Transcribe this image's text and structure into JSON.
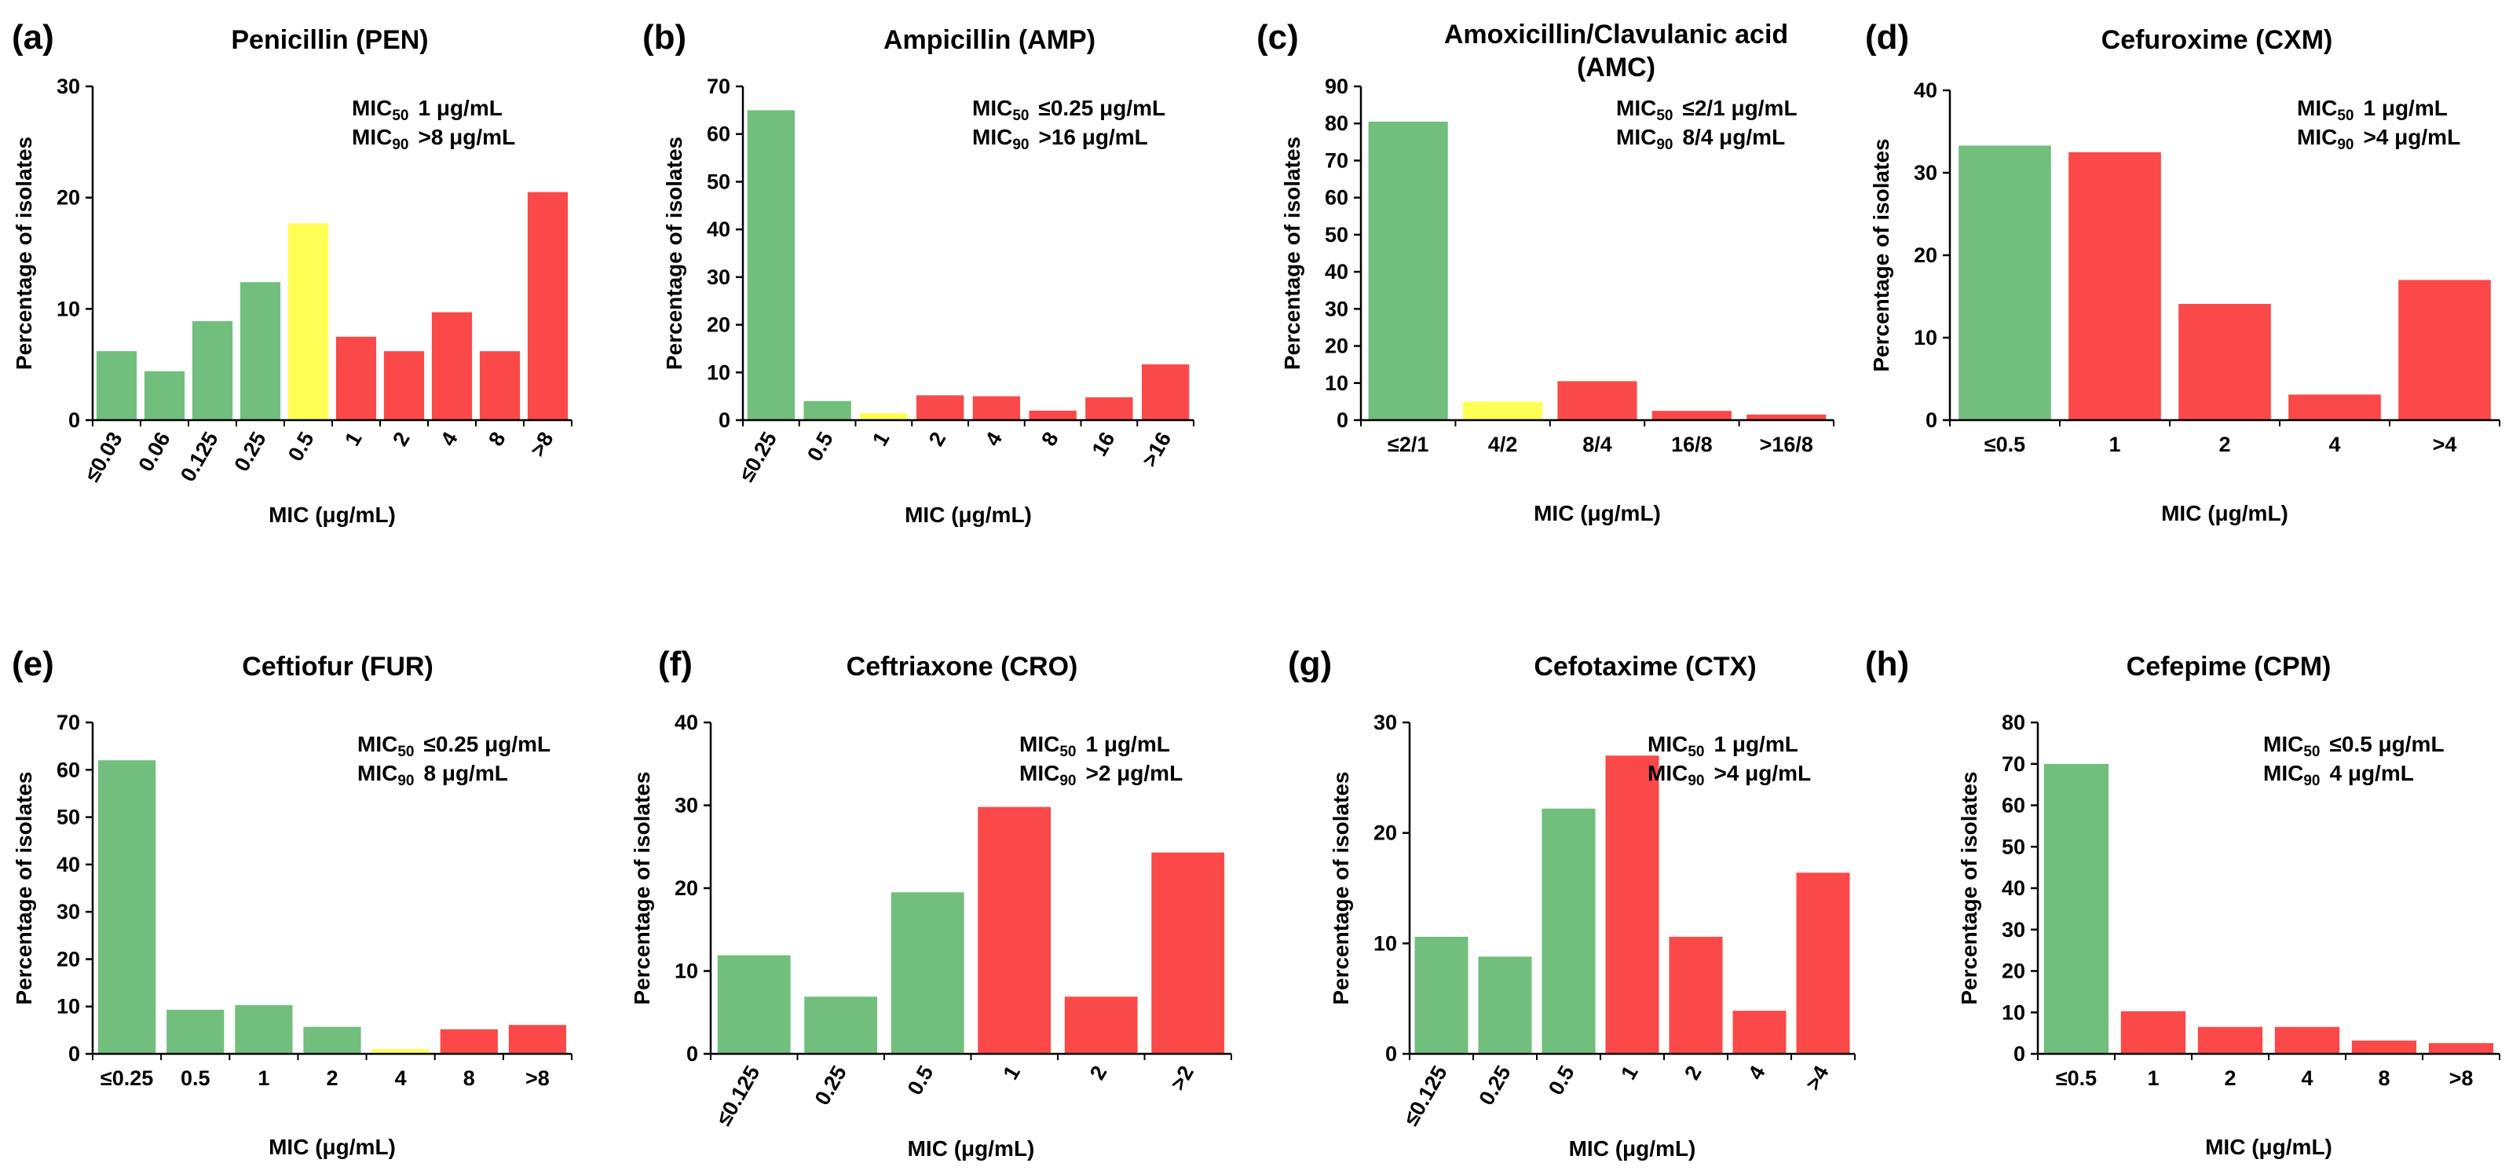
{
  "colors": {
    "susceptible": "#71be7d",
    "intermediate": "#ffff55",
    "resistant": "#fb4848"
  },
  "chart_data": [
    {
      "type": "bar",
      "letter": "(a)",
      "title": "Penicillin (PEN)",
      "categories": [
        "≤0.03",
        "0.06",
        "0.125",
        "0.25",
        "0.5",
        "1",
        "2",
        "4",
        "8",
        ">8"
      ],
      "values": [
        6.2,
        4.4,
        8.9,
        12.4,
        17.7,
        7.5,
        6.2,
        9.7,
        6.2,
        20.5
      ],
      "classes": [
        "S",
        "S",
        "S",
        "S",
        "I",
        "R",
        "R",
        "R",
        "R",
        "R"
      ],
      "ylim": [
        0,
        30
      ],
      "yticks": [
        "0",
        "10",
        "20",
        "30"
      ],
      "xlabel": "MIC (μg/mL)",
      "ylabel": "Percentage of isolates",
      "mic50": {
        "label": "MIC",
        "sub": "50",
        "value": "1 μg/mL"
      },
      "mic90": {
        "label": "MIC",
        "sub": "90",
        "value": ">8 μg/mL"
      }
    },
    {
      "type": "bar",
      "letter": "(b)",
      "title": "Ampicillin  (AMP)",
      "categories": [
        "≤0.25",
        "0.5",
        "1",
        "2",
        "4",
        "8",
        "16",
        ">16"
      ],
      "values": [
        65,
        4,
        1.5,
        5.2,
        5,
        2,
        4.8,
        11.7
      ],
      "classes": [
        "S",
        "S",
        "I",
        "R",
        "R",
        "R",
        "R",
        "R"
      ],
      "ylim": [
        0,
        70
      ],
      "yticks": [
        "0",
        "10",
        "20",
        "30",
        "40",
        "50",
        "60",
        "70"
      ],
      "xlabel": "MIC (μg/mL)",
      "ylabel": "Percentage of isolates",
      "mic50": {
        "label": "MIC",
        "sub": "50",
        "value": "≤0.25 μg/mL"
      },
      "mic90": {
        "label": "MIC",
        "sub": "90",
        "value": ">16 μg/mL"
      }
    },
    {
      "type": "bar",
      "letter": "(c)",
      "title": "Amoxicillin/Clavulanic  acid",
      "title2": "(AMC)",
      "categories": [
        "≤2/1",
        "4/2",
        "8/4",
        "16/8",
        ">16/8"
      ],
      "values": [
        80.5,
        5,
        10.5,
        2.5,
        1.5
      ],
      "classes": [
        "S",
        "I",
        "R",
        "R",
        "R"
      ],
      "ylim": [
        0,
        90
      ],
      "yticks": [
        "0",
        "10",
        "20",
        "30",
        "40",
        "50",
        "60",
        "70",
        "80",
        "90"
      ],
      "xlabel": "MIC (μg/mL)",
      "ylabel": "Percentage of isolates",
      "mic50": {
        "label": "MIC",
        "sub": "50",
        "value": "≤2/1 μg/mL"
      },
      "mic90": {
        "label": "MIC",
        "sub": "90",
        "value": "8/4 μg/mL"
      }
    },
    {
      "type": "bar",
      "letter": "(d)",
      "title": "Cefuroxime (CXM)",
      "categories": [
        "≤0.5",
        "1",
        "2",
        "4",
        ">4"
      ],
      "values": [
        33.3,
        32.5,
        14.1,
        3.1,
        17
      ],
      "classes": [
        "S",
        "R",
        "R",
        "R",
        "R"
      ],
      "ylim": [
        0,
        40
      ],
      "yticks": [
        "0",
        "10",
        "20",
        "30",
        "40"
      ],
      "xlabel": "MIC (μg/mL)",
      "ylabel": "Percentage of isolates",
      "mic50": {
        "label": "MIC",
        "sub": "50",
        "value": "1 μg/mL"
      },
      "mic90": {
        "label": "MIC",
        "sub": "90",
        "value": ">4 μg/mL"
      }
    },
    {
      "type": "bar",
      "letter": "(e)",
      "title": "Ceftiofur (FUR)",
      "categories": [
        "≤0.25",
        "0.5",
        "1",
        "2",
        "4",
        "8",
        ">8"
      ],
      "values": [
        62,
        9.3,
        10.3,
        5.7,
        1,
        5.2,
        6.1
      ],
      "classes": [
        "S",
        "S",
        "S",
        "S",
        "I",
        "R",
        "R"
      ],
      "ylim": [
        0,
        70
      ],
      "yticks": [
        "0",
        "10",
        "20",
        "30",
        "40",
        "50",
        "60",
        "70"
      ],
      "xlabel": "MIC (μg/mL)",
      "ylabel": "Percentage of isolates",
      "mic50": {
        "label": "MIC",
        "sub": "50",
        "value": "≤0.25 μg/mL"
      },
      "mic90": {
        "label": "MIC",
        "sub": "90",
        "value": "8 μg/mL"
      }
    },
    {
      "type": "bar",
      "letter": "(f)",
      "title": "Ceftriaxone (CRO)",
      "categories": [
        "≤0.125",
        "0.25",
        "0.5",
        "1",
        "2",
        ">2"
      ],
      "values": [
        11.9,
        6.9,
        19.5,
        29.8,
        6.9,
        24.3
      ],
      "classes": [
        "S",
        "S",
        "S",
        "R",
        "R",
        "R"
      ],
      "ylim": [
        0,
        40
      ],
      "yticks": [
        "0",
        "10",
        "20",
        "30",
        "40"
      ],
      "xlabel": "MIC (μg/mL)",
      "ylabel": "Percentage of isolates",
      "mic50": {
        "label": "MIC",
        "sub": "50",
        "value": "1 μg/mL"
      },
      "mic90": {
        "label": "MIC",
        "sub": "90",
        "value": ">2 μg/mL"
      }
    },
    {
      "type": "bar",
      "letter": "(g)",
      "title": "Cefotaxime (CTX)",
      "categories": [
        "≤0.125",
        "0.25",
        "0.5",
        "1",
        "2",
        "4",
        ">4"
      ],
      "values": [
        10.6,
        8.8,
        22.2,
        27,
        10.6,
        3.9,
        16.4
      ],
      "classes": [
        "S",
        "S",
        "S",
        "R",
        "R",
        "R",
        "R"
      ],
      "ylim": [
        0,
        30
      ],
      "yticks": [
        "0",
        "10",
        "20",
        "30"
      ],
      "xlabel": "MIC (μg/mL)",
      "ylabel": "Percentage of isolates",
      "mic50": {
        "label": "MIC",
        "sub": "50",
        "value": "1 μg/mL"
      },
      "mic90": {
        "label": "MIC",
        "sub": "90",
        "value": ">4 μg/mL"
      }
    },
    {
      "type": "bar",
      "letter": "(h)",
      "title": "Cefepime (CPM)",
      "categories": [
        "≤0.5",
        "1",
        "2",
        "4",
        "8",
        ">8"
      ],
      "values": [
        70,
        10.3,
        6.5,
        6.5,
        3.2,
        2.6
      ],
      "classes": [
        "S",
        "R",
        "R",
        "R",
        "R",
        "R"
      ],
      "ylim": [
        0,
        80
      ],
      "yticks": [
        "0",
        "10",
        "20",
        "30",
        "40",
        "50",
        "60",
        "70",
        "80"
      ],
      "xlabel": "MIC (μg/mL)",
      "ylabel": "Percentage of isolates",
      "mic50": {
        "label": "MIC",
        "sub": "50",
        "value": "≤0.5 μg/mL"
      },
      "mic90": {
        "label": "MIC",
        "sub": "90",
        "value": "4 μg/mL"
      }
    }
  ]
}
